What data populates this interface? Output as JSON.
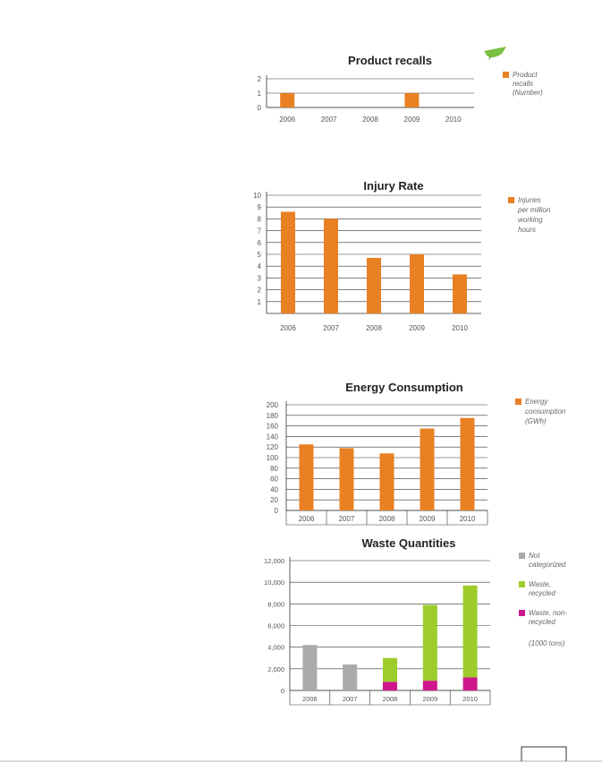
{
  "colors": {
    "orange": "#e98023",
    "gray": "#aaaaaa",
    "green": "#9dcc2b",
    "magenta": "#d0168d",
    "logo": "#7ac043",
    "line": "#333333"
  },
  "logo": {
    "icon": "green-leaf-icon"
  },
  "chart_data": [
    {
      "type": "bar",
      "title": "Product recalls",
      "categories": [
        "2006",
        "2007",
        "2008",
        "2009",
        "2010"
      ],
      "series": [
        {
          "name": "Product recalls (Number)",
          "values": [
            1,
            0,
            0,
            1,
            0
          ],
          "color": "#e98023"
        }
      ],
      "ylim": [
        0,
        2
      ],
      "yticks": [
        "0",
        "1",
        "2"
      ],
      "grid": true,
      "legend_position": "right",
      "legend_lines": [
        [
          "Product",
          "recalls",
          "(Number)"
        ]
      ]
    },
    {
      "type": "bar",
      "title": "Injury Rate",
      "categories": [
        "2006",
        "2007",
        "2008",
        "2009",
        "2010"
      ],
      "series": [
        {
          "name": "Injuries per million working hours",
          "values": [
            8.6,
            8.0,
            4.7,
            5.0,
            3.3
          ],
          "color": "#e98023"
        }
      ],
      "ylim": [
        0,
        10
      ],
      "yticks": [
        "1",
        "2",
        "3",
        "4",
        "5",
        "6",
        "7",
        "8",
        "9",
        "10"
      ],
      "grid": true,
      "legend_position": "right",
      "legend_lines": [
        [
          "Injuries",
          "per million",
          "working",
          "hours"
        ]
      ]
    },
    {
      "type": "bar",
      "title": "Energy Consumption",
      "categories": [
        "2006",
        "2007",
        "2008",
        "2009",
        "2010"
      ],
      "series": [
        {
          "name": "Energy consumption (GWh)",
          "values": [
            125,
            118,
            108,
            155,
            175
          ],
          "color": "#e98023"
        }
      ],
      "ylim": [
        0,
        200
      ],
      "yticks": [
        "0",
        "20",
        "40",
        "60",
        "80",
        "100",
        "120",
        "140",
        "160",
        "180",
        "200"
      ],
      "grid": true,
      "legend_position": "right",
      "legend_lines": [
        [
          "Energy",
          "consumption",
          "(GWh)"
        ]
      ]
    },
    {
      "type": "bar",
      "stacked": true,
      "title": "Waste Quantities",
      "categories": [
        "2006",
        "2007",
        "2008",
        "2009",
        "2010"
      ],
      "series": [
        {
          "name": "Not categorized",
          "values": [
            4200,
            2400,
            0,
            0,
            0
          ],
          "color": "#aaaaaa"
        },
        {
          "name": "Waste, non-recycled",
          "values": [
            0,
            0,
            800,
            900,
            1200
          ],
          "color": "#d0168d"
        },
        {
          "name": "Waste, recycled",
          "values": [
            0,
            0,
            2200,
            7000,
            8500
          ],
          "color": "#9dcc2b"
        }
      ],
      "ylim": [
        0,
        12000
      ],
      "yticks": [
        "0",
        "2,000",
        "4,000",
        "6,000",
        "8,000",
        "10,000",
        "12,000"
      ],
      "grid": true,
      "legend_position": "right",
      "legend_items": [
        {
          "color": "#aaaaaa",
          "lines": [
            "Not",
            "categorized"
          ]
        },
        {
          "color": "#9dcc2b",
          "lines": [
            "Waste,",
            "recycled"
          ]
        },
        {
          "color": "#d0168d",
          "lines": [
            "Waste, non-",
            "recycled"
          ]
        }
      ],
      "unit_note": "(1000 tons)"
    }
  ]
}
